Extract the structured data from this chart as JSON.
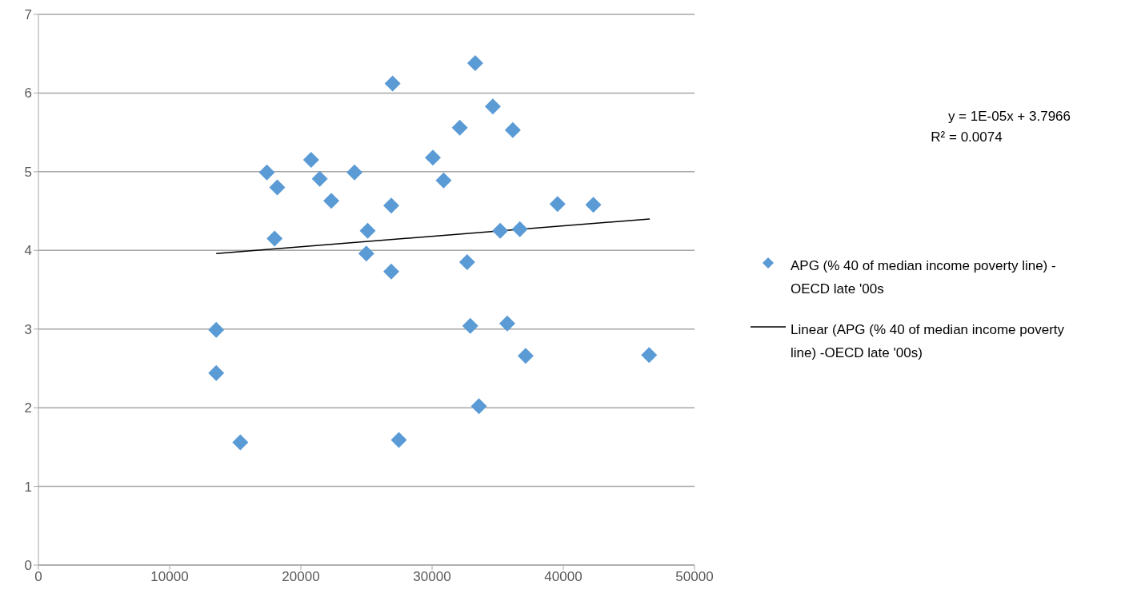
{
  "chart_data": {
    "type": "scatter",
    "xlim": [
      0,
      50000
    ],
    "xticks": [
      0,
      10000,
      20000,
      30000,
      40000,
      50000
    ],
    "ylim": [
      0,
      7
    ],
    "yticks": [
      0,
      1,
      2,
      3,
      4,
      5,
      6,
      7
    ],
    "grid": "y",
    "legend": "right",
    "annotations": [
      "y = 1E-05x + 3.7966",
      "R² = 0.0074"
    ],
    "series": [
      {
        "name": "APG (% 40 of median income poverty line) -OECD late '00s",
        "color": "#5b9bd5",
        "marker": "diamond",
        "x": [
          26990,
          17410,
          20780,
          18200,
          21440,
          24090,
          22320,
          26890,
          18000,
          25090,
          24990,
          26890,
          13550,
          13550,
          15390,
          27470,
          33290,
          34630,
          32110,
          36150,
          30060,
          30880,
          39560,
          42290,
          35190,
          36690,
          32670,
          32910,
          35730,
          37130,
          46540,
          33570
        ],
        "values": [
          6.12,
          4.99,
          5.15,
          4.8,
          4.91,
          4.99,
          4.63,
          4.57,
          4.15,
          4.25,
          3.96,
          3.73,
          2.99,
          2.44,
          1.56,
          1.59,
          6.38,
          5.83,
          5.56,
          5.53,
          5.18,
          4.89,
          4.59,
          4.58,
          4.25,
          4.27,
          3.85,
          3.04,
          3.07,
          2.66,
          2.67,
          2.02
        ]
      },
      {
        "name": "Linear (APG (% 40 of median income poverty line) -OECD late '00s)",
        "color": "#000000",
        "type": "line",
        "line_style": "solid",
        "x": [
          13550,
          46590
        ],
        "values": [
          3.96,
          4.4
        ]
      }
    ]
  }
}
